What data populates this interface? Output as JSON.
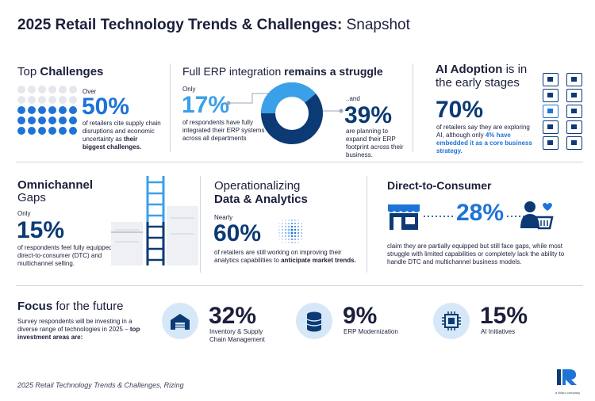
{
  "title": {
    "bold": "2025 Retail Technology Trends & Challenges:",
    "light": "Snapshot"
  },
  "challenges": {
    "heading_light": "Top",
    "heading_bold": "Challenges",
    "over": "Over",
    "stat": "50%",
    "desc": "of retailers cite supply chain disruptions and economic uncertainty as",
    "desc_bold": "their biggest challenges.",
    "dots_total": 30,
    "dots_on": 18
  },
  "erp": {
    "heading_light": "Full ERP integration",
    "heading_bold": "remains a struggle",
    "only": "Only",
    "stat1": "17%",
    "desc1": "of respondents have fully integrated their ERP systems across all departments",
    "and": "..and",
    "stat2": "39%",
    "desc2": "are planning to expand their ERP footprint across their business.",
    "donut_share": 0.39
  },
  "ai": {
    "heading_bold": "AI Adoption",
    "heading_light1": "is in",
    "heading_light2": "the early stages",
    "stat": "70%",
    "desc": "of retailers say they are exploring AI, although only",
    "desc_bold": "4% have embedded it as a core business strategy."
  },
  "omni": {
    "heading_bold": "Omnichannel",
    "heading_light": "Gaps",
    "only": "Only",
    "stat": "15%",
    "desc": "of respondents feel fully equipped for direct-to-consumer (DTC) and multichannel selling."
  },
  "data": {
    "heading_light": "Operationalizing",
    "heading_bold": "Data & Analytics",
    "nearly": "Nearly",
    "stat": "60%",
    "desc": "of retailers are still working on improving their analytics capabilities to",
    "desc_bold": "anticipate market trends."
  },
  "dtc": {
    "heading": "Direct-to-Consumer",
    "stat": "28%",
    "desc": "claim they are partially equipped but still face gaps, while most struggle with limited capabilities or completely lack the ability to handle DTC and multichannel business models."
  },
  "focus": {
    "heading_bold": "Focus",
    "heading_light": "for the future",
    "desc": "Survey respondents will be investing in a diverse range of technologies in 2025 –",
    "desc_bold": "top investment areas are:",
    "items": [
      {
        "stat": "32%",
        "label1": "Inventory & Supply",
        "label2": "Chain Management",
        "icon": "warehouse-icon"
      },
      {
        "stat": "9%",
        "label1": "ERP Modernization",
        "label2": "",
        "icon": "database-icon"
      },
      {
        "stat": "15%",
        "label1": "AI Initiatives",
        "label2": "",
        "icon": "chip-icon"
      }
    ]
  },
  "footer": {
    "source": "2025 Retail Technology Trends & Challenges, Rizing",
    "logo_sub": "a Wipro company"
  },
  "colors": {
    "navy": "#0b3a75",
    "blue": "#1e73d6",
    "light_blue": "#3aa0ea",
    "pale_blue": "#d6e8f8"
  }
}
